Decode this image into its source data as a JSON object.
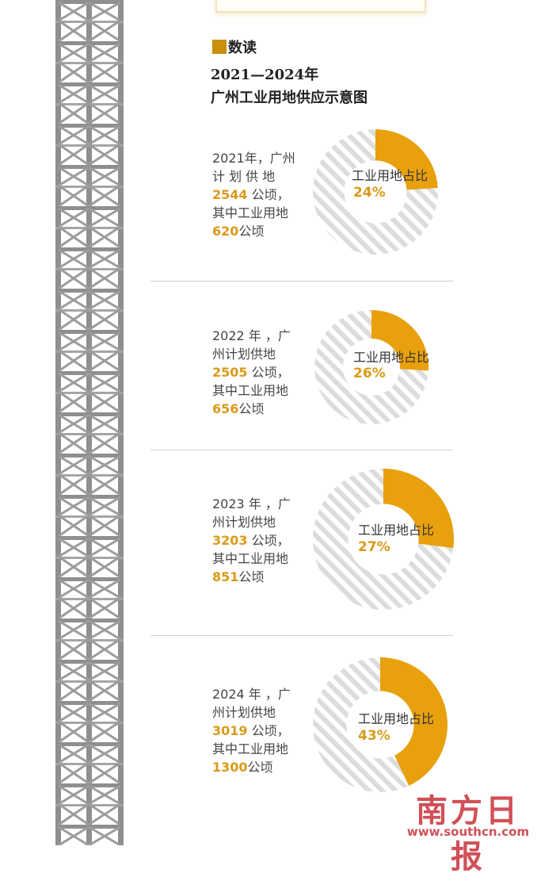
{
  "header": {
    "label": "数读",
    "title_line1": "2021—2024年",
    "title_line2": "广州工业用地供应示意图"
  },
  "colors": {
    "accent": "#E8A00C",
    "stripe": "#DCDCDC",
    "number_text": "#D99A18"
  },
  "chart_data": {
    "type": "pie",
    "slice_label": "工业用地占比",
    "items": [
      {
        "desc_line1": "2021年，广州",
        "desc_line2": "计 划 供 地",
        "planned": "2544",
        "unit_after_planned": "公顷，",
        "desc_line4": "其中工业用地",
        "industrial": "620",
        "unit_after_industrial": "公顷",
        "share_label": "24%",
        "share": 24
      },
      {
        "desc_line1": "2022 年 ，广",
        "desc_line2": "州计划供地",
        "planned": "2505",
        "unit_after_planned": "公顷，",
        "desc_line4": "其中工业用地",
        "industrial": "656",
        "unit_after_industrial": "公顷",
        "share_label": "26%",
        "share": 26
      },
      {
        "desc_line1": "2023 年 ，广",
        "desc_line2": "州计划供地",
        "planned": "3203",
        "unit_after_planned": "公顷，",
        "desc_line4": "其中工业用地",
        "industrial": "851",
        "unit_after_industrial": "公顷",
        "share_label": "27%",
        "share": 27
      },
      {
        "desc_line1": "2024 年 ，广",
        "desc_line2": "州计划供地",
        "planned": "3019",
        "unit_after_planned": "公顷，",
        "desc_line4": "其中工业用地",
        "industrial": "1300",
        "unit_after_industrial": "公顷",
        "share_label": "43%",
        "share": 43
      }
    ]
  },
  "watermark": {
    "name": "南方日报",
    "url": "www.southcn.com"
  }
}
